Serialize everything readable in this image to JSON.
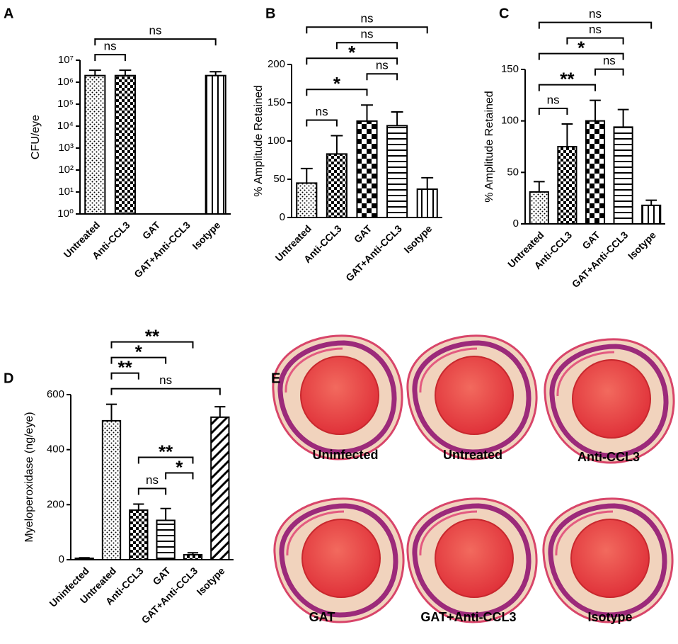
{
  "chart_data": [
    {
      "type": "bar",
      "panel": "A",
      "ylabel": "CFU/eye",
      "log_scale": true,
      "color": "#000000",
      "categories": [
        "Untreated",
        "Anti-CCL3",
        "GAT",
        "GAT+Anti-CCL3",
        "Isotype"
      ],
      "values": [
        2000000,
        2000000,
        null,
        null,
        2000000
      ],
      "errors": [
        1500000,
        1500000,
        null,
        null,
        1000000
      ],
      "patterns": [
        "dots",
        "checker",
        null,
        null,
        "vlines"
      ],
      "ylim": [
        1,
        10000000
      ],
      "yticks": [
        {
          "value": 1,
          "label": "10⁰"
        },
        {
          "value": 10,
          "label": "10¹"
        },
        {
          "value": 100,
          "label": "10²"
        },
        {
          "value": 1000,
          "label": "10³"
        },
        {
          "value": 10000,
          "label": "10⁴"
        },
        {
          "value": 100000,
          "label": "10⁵"
        },
        {
          "value": 1000000,
          "label": "10⁶"
        },
        {
          "value": 10000000,
          "label": "10⁷"
        }
      ],
      "comparisons": [
        {
          "groups": [
            "Untreated",
            "Anti-CCL3"
          ],
          "label": "ns"
        },
        {
          "groups": [
            "Untreated",
            "Isotype"
          ],
          "label": "ns"
        }
      ]
    },
    {
      "type": "bar",
      "panel": "B",
      "ylabel": "% Amplitude Retained",
      "color": "#000000",
      "categories": [
        "Untreated",
        "Anti-CCL3",
        "GAT",
        "GAT+Anti-CCL3",
        "Isotype"
      ],
      "values": [
        45,
        83,
        126,
        120,
        37
      ],
      "errors": [
        19,
        24,
        21,
        18,
        15
      ],
      "patterns": [
        "dots",
        "checker",
        "bigchecker",
        "hlines",
        "vlines"
      ],
      "ylim": [
        0,
        200
      ],
      "yticks": [
        0,
        50,
        100,
        150,
        200
      ],
      "comparisons": [
        {
          "groups": [
            "Untreated",
            "Anti-CCL3"
          ],
          "label": "ns"
        },
        {
          "groups": [
            "Untreated",
            "GAT"
          ],
          "label": "*"
        },
        {
          "groups": [
            "GAT",
            "GAT+Anti-CCL3"
          ],
          "label": "ns"
        },
        {
          "groups": [
            "Untreated",
            "GAT+Anti-CCL3"
          ],
          "label": "*"
        },
        {
          "groups": [
            "Anti-CCL3",
            "GAT+Anti-CCL3"
          ],
          "label": "ns"
        },
        {
          "groups": [
            "Untreated",
            "Isotype"
          ],
          "label": "ns"
        }
      ]
    },
    {
      "type": "bar",
      "panel": "C",
      "ylabel": "% Amplitude Retained",
      "color": "#000000",
      "categories": [
        "Untreated",
        "Anti-CCL3",
        "GAT",
        "GAT+Anti-CCL3",
        "Isotype"
      ],
      "values": [
        31,
        75,
        100,
        94,
        18
      ],
      "errors": [
        10,
        22,
        20,
        17,
        5
      ],
      "patterns": [
        "dots",
        "checker",
        "bigchecker",
        "hlines",
        "vlines"
      ],
      "ylim": [
        0,
        150
      ],
      "yticks": [
        0,
        50,
        100,
        150
      ],
      "comparisons": [
        {
          "groups": [
            "Untreated",
            "Anti-CCL3"
          ],
          "label": "ns"
        },
        {
          "groups": [
            "Untreated",
            "GAT"
          ],
          "label": "**"
        },
        {
          "groups": [
            "GAT",
            "GAT+Anti-CCL3"
          ],
          "label": "ns"
        },
        {
          "groups": [
            "Untreated",
            "GAT+Anti-CCL3"
          ],
          "label": "*"
        },
        {
          "groups": [
            "Anti-CCL3",
            "GAT+Anti-CCL3"
          ],
          "label": "ns"
        },
        {
          "groups": [
            "Untreated",
            "Isotype"
          ],
          "label": "ns"
        }
      ]
    },
    {
      "type": "bar",
      "panel": "D",
      "ylabel": "Myeloperoxidase (ng/eye)",
      "color": "#000000",
      "categories": [
        "Uninfected",
        "Untreated",
        "Anti-CCL3",
        "GAT",
        "GAT+Anti-CCL3",
        "Isotype"
      ],
      "values": [
        5,
        505,
        180,
        143,
        18,
        518
      ],
      "errors": [
        2,
        60,
        22,
        43,
        7,
        38
      ],
      "patterns": [
        "open",
        "dots",
        "checker",
        "hlines",
        "checker",
        "diag"
      ],
      "ylim": [
        0,
        600
      ],
      "yticks": [
        0,
        200,
        400,
        600
      ],
      "comparisons": [
        {
          "groups": [
            "Anti-CCL3",
            "GAT"
          ],
          "label": "ns"
        },
        {
          "groups": [
            "GAT",
            "GAT+Anti-CCL3"
          ],
          "label": "*"
        },
        {
          "groups": [
            "Anti-CCL3",
            "GAT+Anti-CCL3"
          ],
          "label": "**"
        },
        {
          "groups": [
            "Untreated",
            "Isotype"
          ],
          "label": "ns"
        },
        {
          "groups": [
            "Untreated",
            "Anti-CCL3"
          ],
          "label": "**"
        },
        {
          "groups": [
            "Untreated",
            "GAT"
          ],
          "label": "*"
        },
        {
          "groups": [
            "Untreated",
            "GAT+Anti-CCL3"
          ],
          "label": "**"
        }
      ]
    }
  ],
  "panel_e": {
    "panel": "E",
    "labels": [
      "Uninfected",
      "Untreated",
      "Anti-CCL3",
      "GAT",
      "GAT+Anti-CCL3",
      "Isotype"
    ]
  }
}
